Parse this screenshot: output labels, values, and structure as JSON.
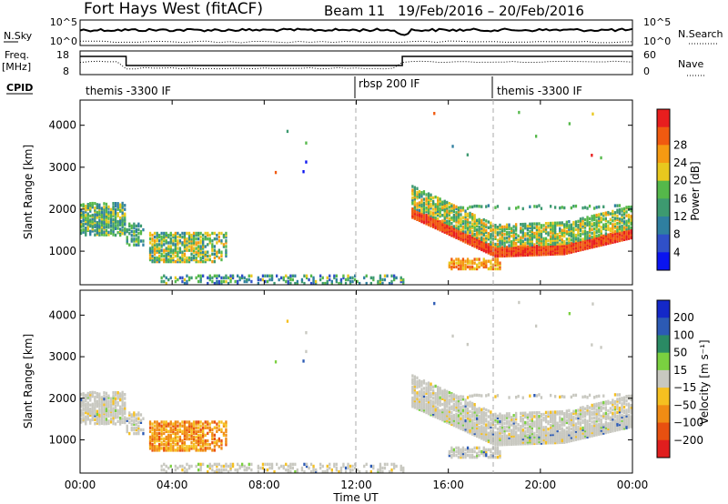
{
  "header": {
    "station": "Fort Hays West (fitACF)",
    "beam": "Beam 11",
    "dates": "19/Feb/2016 – 20/Feb/2016"
  },
  "nsky_panel": {
    "left_label": "N.Sky",
    "left_ticks": [
      "10^5",
      "10^0"
    ],
    "right_label": "N.Search",
    "right_ticks": [
      "10^5",
      "10^0"
    ]
  },
  "freq_panel": {
    "left_label_line1": "Freq.",
    "left_label_line2": "[MHz]",
    "left_ticks": [
      "18",
      "8"
    ],
    "right_label": "Nave",
    "right_ticks": [
      "60",
      "0"
    ]
  },
  "cpid": {
    "label": "CPID",
    "segments": [
      {
        "name": "themis -3300 IF",
        "start_h": 0
      },
      {
        "name": "rbsp 200 IF",
        "start_h": 12
      },
      {
        "name": "themis -3300 IF",
        "start_h": 18
      }
    ]
  },
  "chart_data": [
    {
      "type": "heatmap",
      "name": "power",
      "ylabel": "Slant Range [km]",
      "ylim": [
        200,
        4600
      ],
      "yticks": [
        1000,
        2000,
        3000,
        4000
      ],
      "xlim": [
        0,
        24
      ],
      "colorbar": {
        "label": "Power [dB]",
        "ticks": [
          "4",
          "8",
          "12",
          "16",
          "20",
          "24",
          "28"
        ],
        "colors": [
          "#0a14f0",
          "#3050c8",
          "#2f7fa0",
          "#3d9a70",
          "#55b84a",
          "#e8c81e",
          "#f59a12",
          "#f05a10",
          "#e81e1e"
        ]
      },
      "vertical_markers_h": [
        12,
        18
      ]
    },
    {
      "type": "heatmap",
      "name": "velocity",
      "ylabel": "Slant Range [km]",
      "ylim": [
        200,
        4600
      ],
      "yticks": [
        1000,
        2000,
        3000,
        4000
      ],
      "xlim": [
        0,
        24
      ],
      "xticks": [
        "00:00",
        "04:00",
        "08:00",
        "12:00",
        "16:00",
        "20:00",
        "00:00"
      ],
      "xlabel": "Time UT",
      "colorbar": {
        "label": "Velocity [m s⁻¹]",
        "ticks": [
          "200",
          "100",
          "50",
          "15",
          "−15",
          "−50",
          "−100",
          "−200"
        ],
        "colors": [
          "#1428c8",
          "#2c5ab4",
          "#2a8a64",
          "#7ad040",
          "#c8c8c0",
          "#f5c020",
          "#f08c14",
          "#e85010",
          "#e01e1e"
        ]
      },
      "vertical_markers_h": [
        12,
        18
      ]
    }
  ]
}
